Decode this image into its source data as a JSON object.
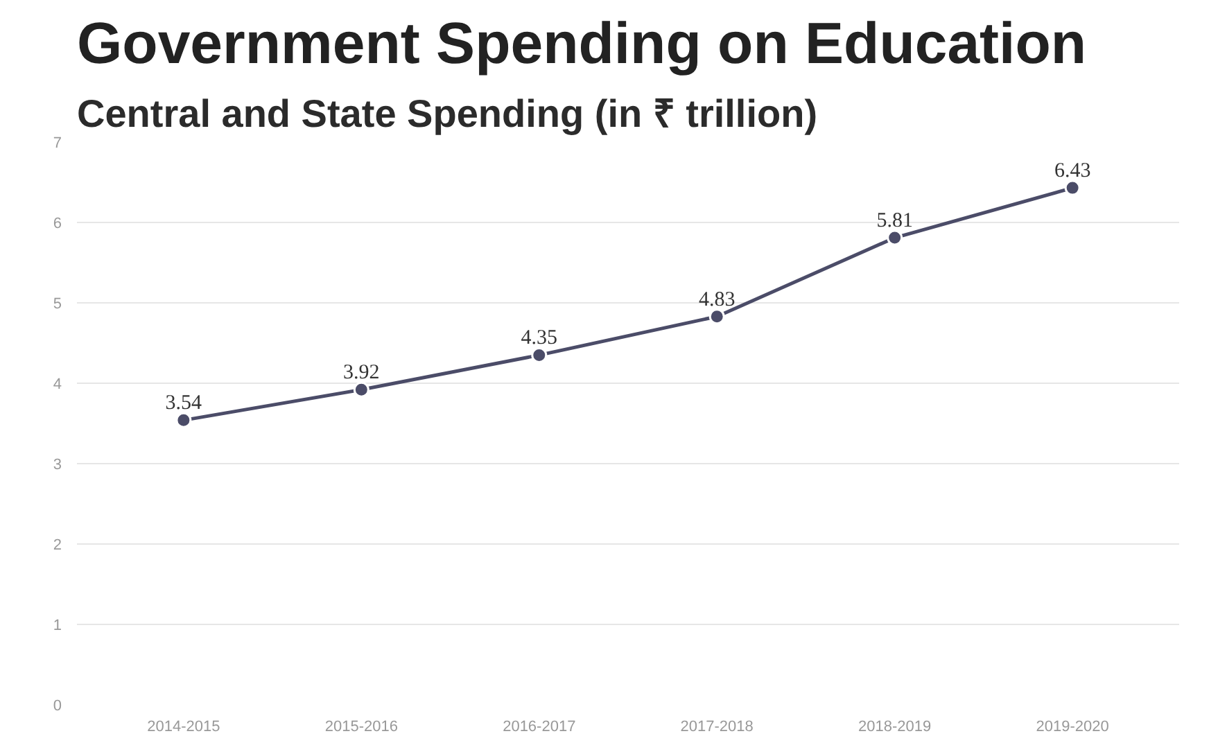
{
  "chart_data": {
    "type": "line",
    "title": "Government Spending on Education",
    "subtitle": "Central and State Spending (in ₹ trillion)",
    "categories": [
      "2014-2015",
      "2015-2016",
      "2016-2017",
      "2017-2018",
      "2018-2019",
      "2019-2020"
    ],
    "series": [
      {
        "color": "#4b4c68",
        "values": [
          3.54,
          3.92,
          4.35,
          4.83,
          5.81,
          6.43
        ]
      }
    ],
    "ylim": [
      0,
      7
    ],
    "yticks": [
      0,
      1,
      2,
      3,
      4,
      5,
      6,
      7
    ],
    "grid": "y",
    "marker": "circle",
    "line_style": "solid",
    "data_labels": true
  }
}
